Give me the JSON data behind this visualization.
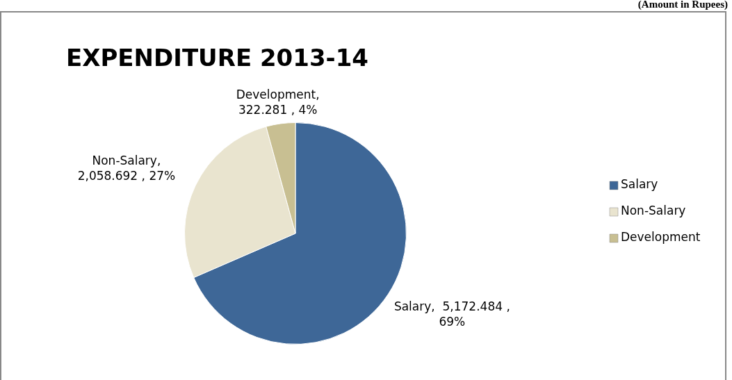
{
  "chart_data": {
    "type": "pie",
    "title": "EXPENDITURE 2013-14",
    "annotations": [
      "(Amount in Rupees)"
    ],
    "categories": [
      "Salary",
      "Non-Salary",
      "Development"
    ],
    "values": [
      5172.484,
      2058.692,
      322.281
    ],
    "colors": [
      "#3e6797",
      "#e9e4cf",
      "#c8bf92"
    ],
    "value_labels": [
      "Salary,  5,172.484 , 69%",
      "Non-Salary, 2,058.692 , 27%",
      "Development, 322.281 , 4%"
    ],
    "legend": "right"
  }
}
